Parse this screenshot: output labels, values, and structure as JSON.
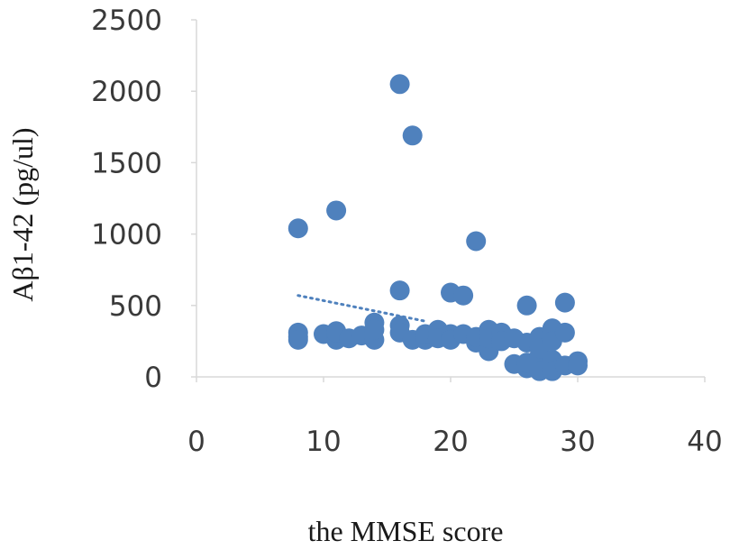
{
  "chart_data": {
    "type": "scatter",
    "title": "",
    "xlabel": "the MMSE score",
    "ylabel": "Aβ1-42  (pg/ul)",
    "xlim": [
      0,
      40
    ],
    "ylim": [
      0,
      2500
    ],
    "x_ticks": [
      "0",
      "10",
      "20",
      "30",
      "40"
    ],
    "y_ticks": [
      "0",
      "500",
      "1000",
      "1500",
      "2000",
      "2500"
    ],
    "grid": false,
    "legend": "none",
    "marker_color": "#4f81bd",
    "trendline": {
      "style": "dotted",
      "color": "#4f81bd",
      "from": [
        8,
        570
      ],
      "to": [
        18,
        390
      ]
    },
    "points": [
      [
        8,
        1040
      ],
      [
        8,
        310
      ],
      [
        8,
        280
      ],
      [
        8,
        260
      ],
      [
        10,
        300
      ],
      [
        11,
        1165
      ],
      [
        11,
        320
      ],
      [
        11,
        260
      ],
      [
        11,
        310
      ],
      [
        12,
        270
      ],
      [
        13,
        290
      ],
      [
        14,
        380
      ],
      [
        14,
        260
      ],
      [
        14,
        330
      ],
      [
        16,
        2050
      ],
      [
        16,
        605
      ],
      [
        16,
        360
      ],
      [
        16,
        310
      ],
      [
        17,
        1690
      ],
      [
        17,
        260
      ],
      [
        18,
        260
      ],
      [
        18,
        300
      ],
      [
        19,
        330
      ],
      [
        19,
        270
      ],
      [
        20,
        590
      ],
      [
        20,
        300
      ],
      [
        20,
        260
      ],
      [
        21,
        570
      ],
      [
        21,
        300
      ],
      [
        22,
        950
      ],
      [
        22,
        240
      ],
      [
        22,
        280
      ],
      [
        23,
        180
      ],
      [
        23,
        330
      ],
      [
        23,
        270
      ],
      [
        24,
        310
      ],
      [
        24,
        250
      ],
      [
        25,
        270
      ],
      [
        25,
        90
      ],
      [
        26,
        500
      ],
      [
        26,
        240
      ],
      [
        26,
        60
      ],
      [
        26,
        100
      ],
      [
        27,
        280
      ],
      [
        27,
        150
      ],
      [
        27,
        40
      ],
      [
        27,
        200
      ],
      [
        28,
        340
      ],
      [
        28,
        120
      ],
      [
        28,
        40
      ],
      [
        28,
        250
      ],
      [
        29,
        520
      ],
      [
        29,
        310
      ],
      [
        29,
        80
      ],
      [
        30,
        110
      ],
      [
        30,
        80
      ]
    ]
  }
}
